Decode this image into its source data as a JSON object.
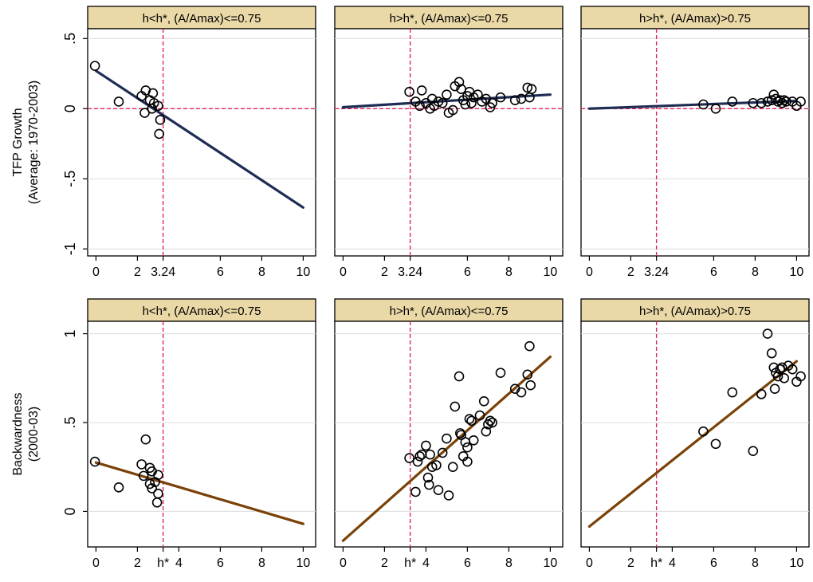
{
  "chart_data": {
    "type": "scatter",
    "colors": {
      "strip_fill": "#ead9a7",
      "top_fit_line": "#1e2d54",
      "bottom_fit_line": "#7a4208",
      "reference_line": "#e0245c",
      "grid": "#dcdcdc",
      "marker": "#000000"
    },
    "rows": [
      {
        "ylabel_line1": "TFP Growth",
        "ylabel_line2": "(Average: 1970-2003)",
        "ylim": [
          -1.05,
          0.57
        ],
        "yticks": [
          -1,
          -0.5,
          0,
          0.5
        ],
        "ytick_labels": [
          "-1",
          "-.5",
          "0",
          ".5"
        ],
        "hline_y": 0,
        "vline_x": 3.24,
        "xticks": [
          0,
          2,
          3.24,
          6,
          8,
          10
        ],
        "xtick_labels": [
          "0",
          "2",
          "3.24",
          "6",
          "8",
          "10"
        ]
      },
      {
        "ylabel_line1": "Backwardness",
        "ylabel_line2": "(2000-03)",
        "ylim": [
          -0.2,
          1.07
        ],
        "yticks": [
          0,
          0.5,
          1
        ],
        "ytick_labels": [
          "0",
          ".5",
          "1"
        ],
        "hline_y": null,
        "vline_x": 3.24,
        "xticks": [
          0,
          2,
          3.24,
          4,
          6,
          8,
          10
        ],
        "xtick_labels": [
          "0",
          "2",
          "h*",
          "4",
          "6",
          "8",
          "10"
        ]
      }
    ],
    "xlim": [
      -0.4,
      10.6
    ],
    "panels": [
      {
        "row": 0,
        "col": 0,
        "title": "h<h*, (A/Amax)<=0.75",
        "fit": {
          "x": [
            0,
            10
          ],
          "y": [
            0.27,
            -0.705
          ]
        },
        "points": [
          {
            "x": -0.05,
            "y": 0.305
          },
          {
            "x": 1.1,
            "y": 0.05
          },
          {
            "x": 2.2,
            "y": 0.09
          },
          {
            "x": 2.4,
            "y": 0.13
          },
          {
            "x": 2.35,
            "y": -0.03
          },
          {
            "x": 2.6,
            "y": 0.06
          },
          {
            "x": 2.75,
            "y": 0.11
          },
          {
            "x": 2.8,
            "y": 0.04
          },
          {
            "x": 2.7,
            "y": 0.0
          },
          {
            "x": 3.0,
            "y": 0.02
          },
          {
            "x": 3.1,
            "y": -0.08
          },
          {
            "x": 3.05,
            "y": -0.18
          }
        ]
      },
      {
        "row": 0,
        "col": 1,
        "title": "h>h*, (A/Amax)<=0.75",
        "fit": {
          "x": [
            0,
            10
          ],
          "y": [
            0.01,
            0.1
          ]
        },
        "points": [
          {
            "x": 3.2,
            "y": 0.12
          },
          {
            "x": 3.5,
            "y": 0.05
          },
          {
            "x": 3.7,
            "y": 0.02
          },
          {
            "x": 3.8,
            "y": 0.13
          },
          {
            "x": 4.0,
            "y": 0.04
          },
          {
            "x": 4.2,
            "y": 0.0
          },
          {
            "x": 4.3,
            "y": 0.07
          },
          {
            "x": 4.4,
            "y": 0.02
          },
          {
            "x": 4.6,
            "y": 0.05
          },
          {
            "x": 4.8,
            "y": 0.04
          },
          {
            "x": 5.0,
            "y": 0.1
          },
          {
            "x": 5.1,
            "y": -0.03
          },
          {
            "x": 5.3,
            "y": -0.01
          },
          {
            "x": 5.4,
            "y": 0.16
          },
          {
            "x": 5.6,
            "y": 0.19
          },
          {
            "x": 5.7,
            "y": 0.14
          },
          {
            "x": 5.8,
            "y": 0.06
          },
          {
            "x": 5.9,
            "y": 0.03
          },
          {
            "x": 6.0,
            "y": 0.09
          },
          {
            "x": 6.1,
            "y": 0.12
          },
          {
            "x": 6.2,
            "y": 0.04
          },
          {
            "x": 6.3,
            "y": 0.08
          },
          {
            "x": 6.5,
            "y": 0.1
          },
          {
            "x": 6.7,
            "y": 0.05
          },
          {
            "x": 6.9,
            "y": 0.07
          },
          {
            "x": 7.1,
            "y": 0.01
          },
          {
            "x": 7.2,
            "y": 0.04
          },
          {
            "x": 7.6,
            "y": 0.08
          },
          {
            "x": 8.3,
            "y": 0.06
          },
          {
            "x": 8.6,
            "y": 0.07
          },
          {
            "x": 8.9,
            "y": 0.15
          },
          {
            "x": 9.0,
            "y": 0.08
          },
          {
            "x": 9.1,
            "y": 0.14
          }
        ]
      },
      {
        "row": 0,
        "col": 2,
        "title": "h>h*, (A/Amax)>0.75",
        "fit": {
          "x": [
            0,
            10
          ],
          "y": [
            0.0,
            0.055
          ]
        },
        "points": [
          {
            "x": 5.5,
            "y": 0.03
          },
          {
            "x": 6.1,
            "y": 0.0
          },
          {
            "x": 6.9,
            "y": 0.05
          },
          {
            "x": 7.9,
            "y": 0.04
          },
          {
            "x": 8.3,
            "y": 0.04
          },
          {
            "x": 8.6,
            "y": 0.05
          },
          {
            "x": 8.8,
            "y": 0.06
          },
          {
            "x": 8.9,
            "y": 0.1
          },
          {
            "x": 9.0,
            "y": 0.07
          },
          {
            "x": 9.1,
            "y": 0.05
          },
          {
            "x": 9.2,
            "y": 0.06
          },
          {
            "x": 9.3,
            "y": 0.04
          },
          {
            "x": 9.4,
            "y": 0.06
          },
          {
            "x": 9.5,
            "y": 0.05
          },
          {
            "x": 9.8,
            "y": 0.05
          },
          {
            "x": 10.0,
            "y": 0.02
          },
          {
            "x": 10.2,
            "y": 0.05
          }
        ]
      },
      {
        "row": 1,
        "col": 0,
        "title": "h<h*, (A/Amax)<=0.75",
        "fit": {
          "x": [
            0,
            10
          ],
          "y": [
            0.275,
            -0.07
          ]
        },
        "points": [
          {
            "x": -0.05,
            "y": 0.28
          },
          {
            "x": 1.1,
            "y": 0.135
          },
          {
            "x": 2.2,
            "y": 0.265
          },
          {
            "x": 2.4,
            "y": 0.405
          },
          {
            "x": 2.3,
            "y": 0.2
          },
          {
            "x": 2.6,
            "y": 0.245
          },
          {
            "x": 2.7,
            "y": 0.225
          },
          {
            "x": 2.6,
            "y": 0.155
          },
          {
            "x": 2.7,
            "y": 0.13
          },
          {
            "x": 2.85,
            "y": 0.165
          },
          {
            "x": 3.0,
            "y": 0.205
          },
          {
            "x": 3.0,
            "y": 0.1
          },
          {
            "x": 2.95,
            "y": 0.05
          }
        ]
      },
      {
        "row": 1,
        "col": 1,
        "title": "h>h*, (A/Amax)<=0.75",
        "fit": {
          "x": [
            0,
            10
          ],
          "y": [
            -0.165,
            0.87
          ]
        },
        "points": [
          {
            "x": 3.2,
            "y": 0.3
          },
          {
            "x": 3.5,
            "y": 0.11
          },
          {
            "x": 3.6,
            "y": 0.28
          },
          {
            "x": 3.7,
            "y": 0.31
          },
          {
            "x": 3.8,
            "y": 0.32
          },
          {
            "x": 4.0,
            "y": 0.37
          },
          {
            "x": 4.1,
            "y": 0.19
          },
          {
            "x": 4.15,
            "y": 0.15
          },
          {
            "x": 4.2,
            "y": 0.32
          },
          {
            "x": 4.3,
            "y": 0.25
          },
          {
            "x": 4.5,
            "y": 0.26
          },
          {
            "x": 4.6,
            "y": 0.12
          },
          {
            "x": 4.8,
            "y": 0.33
          },
          {
            "x": 5.0,
            "y": 0.41
          },
          {
            "x": 5.1,
            "y": 0.09
          },
          {
            "x": 5.3,
            "y": 0.25
          },
          {
            "x": 5.4,
            "y": 0.59
          },
          {
            "x": 5.6,
            "y": 0.76
          },
          {
            "x": 5.65,
            "y": 0.44
          },
          {
            "x": 5.7,
            "y": 0.43
          },
          {
            "x": 5.8,
            "y": 0.31
          },
          {
            "x": 5.9,
            "y": 0.39
          },
          {
            "x": 6.0,
            "y": 0.28
          },
          {
            "x": 6.0,
            "y": 0.36
          },
          {
            "x": 6.1,
            "y": 0.52
          },
          {
            "x": 6.2,
            "y": 0.51
          },
          {
            "x": 6.3,
            "y": 0.4
          },
          {
            "x": 6.6,
            "y": 0.54
          },
          {
            "x": 6.8,
            "y": 0.62
          },
          {
            "x": 6.9,
            "y": 0.45
          },
          {
            "x": 7.0,
            "y": 0.49
          },
          {
            "x": 7.1,
            "y": 0.51
          },
          {
            "x": 7.2,
            "y": 0.5
          },
          {
            "x": 7.6,
            "y": 0.78
          },
          {
            "x": 8.3,
            "y": 0.69
          },
          {
            "x": 8.6,
            "y": 0.67
          },
          {
            "x": 8.9,
            "y": 0.77
          },
          {
            "x": 9.0,
            "y": 0.93
          },
          {
            "x": 9.05,
            "y": 0.71
          }
        ]
      },
      {
        "row": 1,
        "col": 2,
        "title": "h>h*, (A/Amax)>0.75",
        "fit": {
          "x": [
            0,
            10
          ],
          "y": [
            -0.085,
            0.845
          ]
        },
        "points": [
          {
            "x": 5.5,
            "y": 0.45
          },
          {
            "x": 6.1,
            "y": 0.38
          },
          {
            "x": 6.9,
            "y": 0.67
          },
          {
            "x": 7.9,
            "y": 0.34
          },
          {
            "x": 8.3,
            "y": 0.66
          },
          {
            "x": 8.6,
            "y": 1.0
          },
          {
            "x": 8.8,
            "y": 0.89
          },
          {
            "x": 8.9,
            "y": 0.81
          },
          {
            "x": 8.95,
            "y": 0.69
          },
          {
            "x": 9.0,
            "y": 0.78
          },
          {
            "x": 9.1,
            "y": 0.76
          },
          {
            "x": 9.2,
            "y": 0.8
          },
          {
            "x": 9.3,
            "y": 0.81
          },
          {
            "x": 9.4,
            "y": 0.75
          },
          {
            "x": 9.6,
            "y": 0.82
          },
          {
            "x": 9.8,
            "y": 0.8
          },
          {
            "x": 10.0,
            "y": 0.73
          },
          {
            "x": 10.2,
            "y": 0.76
          }
        ]
      }
    ]
  }
}
